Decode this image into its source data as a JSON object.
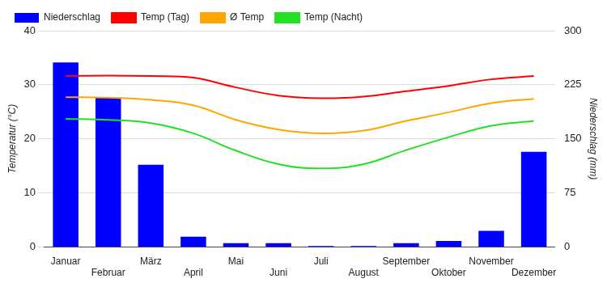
{
  "chart_data": {
    "type": "bar",
    "categories": [
      "Januar",
      "Februar",
      "März",
      "April",
      "Mai",
      "Juni",
      "Juli",
      "August",
      "September",
      "Oktober",
      "November",
      "Dezember"
    ],
    "series": [
      {
        "name": "Niederschlag",
        "type": "bar",
        "axis": "y2",
        "color": "#0000ff",
        "values": [
          256,
          207,
          114,
          14,
          5,
          5,
          1,
          1,
          5,
          8,
          22,
          132
        ]
      },
      {
        "name": "Temp (Tag)",
        "type": "line",
        "color": "#ff0000",
        "values": [
          31.6,
          31.7,
          31.6,
          31.3,
          29.5,
          28.0,
          27.5,
          27.8,
          28.8,
          29.8,
          31.0,
          31.6
        ]
      },
      {
        "name": "Ø Temp",
        "type": "line",
        "color": "#ffa500",
        "values": [
          27.7,
          27.6,
          27.2,
          26.2,
          23.5,
          21.7,
          21.0,
          21.5,
          23.3,
          24.9,
          26.6,
          27.4
        ]
      },
      {
        "name": "Temp (Nacht)",
        "type": "line",
        "color": "#22e022",
        "values": [
          23.7,
          23.5,
          22.9,
          21.0,
          17.8,
          15.3,
          14.5,
          15.3,
          17.9,
          20.3,
          22.4,
          23.3
        ]
      }
    ],
    "y_label": "Temperatur (°C)",
    "y2_label": "Niederschlag (mm)",
    "ylim": [
      0,
      40
    ],
    "yticks": [
      0,
      10,
      20,
      30,
      40
    ],
    "y2lim": [
      0,
      300
    ],
    "y2ticks": [
      0,
      75,
      150,
      225,
      300
    ],
    "grid": true,
    "legend": "top-left"
  }
}
